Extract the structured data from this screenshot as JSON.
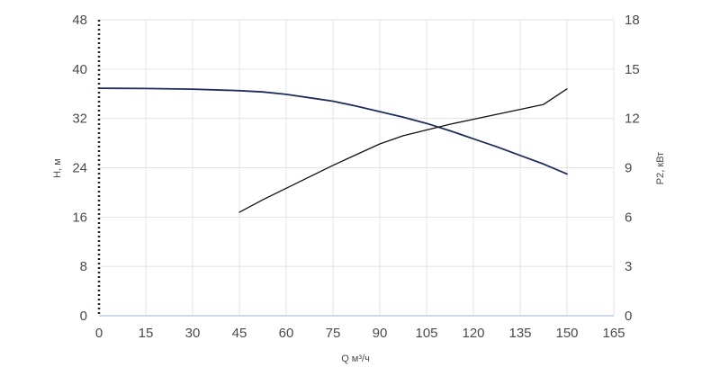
{
  "chart_data": {
    "type": "line",
    "xlabel": "Q м³/ч",
    "ylabel_left": "H, м",
    "ylabel_right": "P2, кВт",
    "xlim": [
      0,
      165
    ],
    "ylim_left": [
      0,
      48
    ],
    "ylim_right": [
      0,
      18
    ],
    "xticks": [
      0,
      15,
      30,
      45,
      60,
      75,
      90,
      105,
      120,
      135,
      150,
      165
    ],
    "yticks_left": [
      0,
      8,
      16,
      24,
      32,
      40,
      48
    ],
    "yticks_right": [
      0,
      3,
      6,
      9,
      12,
      15,
      18
    ],
    "grid": true,
    "colors": {
      "head": "#1f2d5c",
      "power": "#111111",
      "grid": "#e3e3e3",
      "axis": "#cfd8e8"
    },
    "series": [
      {
        "axis": "left",
        "x": [
          0,
          15,
          30,
          45,
          52.5,
          60,
          67.5,
          75,
          82.5,
          90,
          97.5,
          105,
          112.5,
          120,
          127.5,
          135,
          142.5,
          150
        ],
        "values": [
          36.9,
          36.85,
          36.75,
          36.5,
          36.3,
          35.9,
          35.35,
          34.8,
          34.0,
          33.1,
          32.2,
          31.2,
          30.0,
          28.7,
          27.4,
          26.0,
          24.6,
          23.0
        ]
      },
      {
        "axis": "right",
        "x": [
          45,
          52.5,
          60,
          67.5,
          75,
          82.5,
          90,
          97.5,
          105,
          112.5,
          120,
          127.5,
          135,
          142.5,
          150
        ],
        "values": [
          6.3,
          7.05,
          7.75,
          8.45,
          9.15,
          9.8,
          10.45,
          10.95,
          11.3,
          11.65,
          11.95,
          12.25,
          12.55,
          12.85,
          13.8
        ]
      }
    ]
  }
}
